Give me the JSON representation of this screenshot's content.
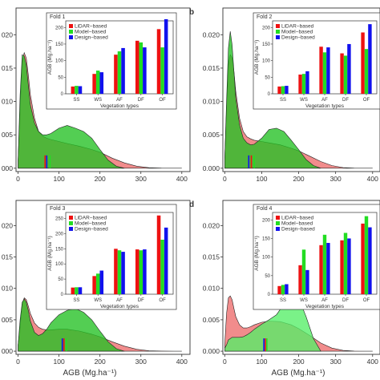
{
  "colors": {
    "lidar": "#ee1111",
    "model": "#22dd22",
    "design": "#1111ee",
    "lidar_density": "#f08080",
    "model_density": "#22c022",
    "model_density_light": "#55ee66"
  },
  "x_axis_label": "AGB (Mg.ha⁻¹)",
  "chart_data": [
    {
      "type": "area",
      "label": "",
      "x_ticks": [
        0,
        100,
        200,
        300,
        400
      ],
      "y_ticks": [
        0.0,
        0.005,
        0.01,
        0.015,
        0.02
      ],
      "y_tick_labels": [
        "000",
        "005",
        "010",
        "015",
        "020"
      ],
      "xlim": [
        -5,
        420
      ],
      "ylim": [
        -0.0005,
        0.024
      ],
      "series": [
        {
          "x": [
            0,
            5,
            10,
            15,
            20,
            25,
            30,
            40,
            50,
            60,
            70,
            80,
            100,
            120,
            150,
            180,
            200,
            230,
            260,
            290,
            320,
            350,
            380,
            400
          ],
          "y": [
            0.0012,
            0.009,
            0.016,
            0.0173,
            0.0165,
            0.014,
            0.011,
            0.0075,
            0.0055,
            0.0048,
            0.0045,
            0.0043,
            0.004,
            0.0037,
            0.0033,
            0.0028,
            0.0024,
            0.0015,
            0.0008,
            0.0003,
            8e-05,
            2e-05,
            0,
            0
          ]
        },
        {
          "x": [
            0,
            5,
            10,
            15,
            20,
            25,
            30,
            40,
            50,
            60,
            70,
            80,
            100,
            120,
            140,
            160,
            180,
            200,
            220,
            240,
            260
          ],
          "y": [
            0.0012,
            0.011,
            0.017,
            0.0168,
            0.0155,
            0.0125,
            0.0095,
            0.0068,
            0.0055,
            0.005,
            0.005,
            0.0052,
            0.006,
            0.0064,
            0.006,
            0.0055,
            0.0045,
            0.0028,
            0.0012,
            0.0003,
            0
          ]
        }
      ],
      "markers": [
        70,
        66,
        78
      ],
      "inset": {
        "title": "Fold 1",
        "ylabel": "AGB (Mg.ha⁻¹)",
        "xlabel": "Vegetation types",
        "categories": [
          "SS",
          "WS",
          "AF",
          "DF",
          "OF"
        ],
        "ylim": [
          0,
          220
        ],
        "y_ticks": [
          0,
          50,
          100,
          150,
          200
        ],
        "series": [
          {
            "name": "LiDAR−based",
            "values": [
              22,
              60,
              118,
              160,
              195
            ]
          },
          {
            "name": "Model−based",
            "values": [
              24,
              70,
              128,
              155,
              140
            ]
          },
          {
            "name": "Design−based",
            "values": [
              23,
              65,
              138,
              140,
              225
            ]
          }
        ]
      }
    },
    {
      "type": "area",
      "label": "b",
      "x_ticks": [
        0,
        100,
        200,
        300,
        400
      ],
      "y_ticks": [
        0.0,
        0.005,
        0.01,
        0.015,
        0.02
      ],
      "y_tick_labels": [
        "0.000",
        "0.005",
        "0.010",
        "0.015",
        "0.020"
      ],
      "xlim": [
        -5,
        420
      ],
      "ylim": [
        -0.0005,
        0.024
      ],
      "series": [
        {
          "x": [
            0,
            5,
            10,
            15,
            20,
            25,
            30,
            40,
            50,
            60,
            70,
            80,
            100,
            120,
            150,
            180,
            200,
            230,
            260,
            290,
            320,
            350,
            380,
            400
          ],
          "y": [
            0.0012,
            0.009,
            0.0155,
            0.017,
            0.0165,
            0.0145,
            0.0115,
            0.0075,
            0.0055,
            0.0047,
            0.0044,
            0.0042,
            0.004,
            0.0038,
            0.0035,
            0.003,
            0.0026,
            0.0018,
            0.001,
            0.0004,
            0.0001,
            2e-05,
            0,
            0
          ]
        },
        {
          "x": [
            0,
            5,
            10,
            15,
            20,
            25,
            30,
            40,
            50,
            60,
            70,
            80,
            100,
            120,
            140,
            160,
            180,
            200,
            220,
            240,
            260
          ],
          "y": [
            0.0012,
            0.01,
            0.018,
            0.0205,
            0.0185,
            0.0145,
            0.0105,
            0.0065,
            0.0045,
            0.0038,
            0.0035,
            0.0036,
            0.0045,
            0.0058,
            0.006,
            0.0055,
            0.0042,
            0.0028,
            0.0013,
            0.0004,
            0
          ]
        }
      ],
      "markers": [
        65,
        72,
        80
      ],
      "inset": {
        "title": "Fold 2",
        "ylabel": "AGB (Mg.ha⁻¹)",
        "xlabel": "Vegetation types",
        "categories": [
          "SS",
          "WS",
          "AF",
          "DF",
          "OF"
        ],
        "ylim": [
          0,
          220
        ],
        "y_ticks": [
          0,
          50,
          100,
          150,
          200
        ],
        "series": [
          {
            "name": "LiDAR−based",
            "values": [
              22,
              58,
              142,
              122,
              185
            ]
          },
          {
            "name": "Model−based",
            "values": [
              23,
              60,
              125,
              115,
              135
            ]
          },
          {
            "name": "Design−based",
            "values": [
              24,
              68,
              140,
              150,
              210
            ]
          }
        ]
      }
    },
    {
      "type": "area",
      "label": "",
      "x_ticks": [
        0,
        100,
        200,
        300,
        400
      ],
      "y_ticks": [
        0.0,
        0.005,
        0.01,
        0.015,
        0.02
      ],
      "y_tick_labels": [
        "000",
        "005",
        "010",
        "015",
        "020"
      ],
      "xlim": [
        -5,
        420
      ],
      "ylim": [
        -0.0005,
        0.024
      ],
      "series": [
        {
          "x": [
            0,
            5,
            10,
            15,
            20,
            25,
            30,
            40,
            50,
            60,
            70,
            80,
            100,
            120,
            150,
            180,
            200,
            230,
            260,
            290,
            320,
            350,
            380,
            400
          ],
          "y": [
            0.001,
            0.004,
            0.0075,
            0.0085,
            0.0082,
            0.0072,
            0.006,
            0.0045,
            0.0038,
            0.0035,
            0.0034,
            0.0034,
            0.0035,
            0.0035,
            0.0032,
            0.0027,
            0.0023,
            0.0015,
            0.0008,
            0.0003,
            8e-05,
            2e-05,
            0,
            0
          ]
        },
        {
          "x": [
            0,
            5,
            10,
            15,
            20,
            25,
            30,
            40,
            50,
            60,
            70,
            80,
            100,
            120,
            140,
            160,
            180,
            200,
            220,
            240,
            260
          ],
          "y": [
            0.001,
            0.005,
            0.0078,
            0.0083,
            0.0078,
            0.0065,
            0.0048,
            0.003,
            0.0025,
            0.0028,
            0.0035,
            0.0045,
            0.0058,
            0.0065,
            0.0068,
            0.0062,
            0.005,
            0.0032,
            0.0015,
            0.0004,
            0
          ]
        }
      ],
      "markers": [
        108,
        112,
        118
      ],
      "inset": {
        "title": "Fold 3",
        "ylabel": "AGB (Mg.ha⁻¹)",
        "xlabel": "Vegetation types",
        "categories": [
          "SS",
          "WS",
          "AF",
          "DF",
          "OF"
        ],
        "ylim": [
          0,
          270
        ],
        "y_ticks": [
          0,
          50,
          100,
          150,
          200,
          250
        ],
        "series": [
          {
            "name": "LiDAR−based",
            "values": [
              22,
              60,
              150,
              148,
              260
            ]
          },
          {
            "name": "Model−based",
            "values": [
              23,
              68,
              145,
              145,
              180
            ]
          },
          {
            "name": "Design−based",
            "values": [
              23,
              78,
              140,
              148,
              220
            ]
          }
        ]
      }
    },
    {
      "type": "area",
      "label": "d",
      "x_ticks": [
        0,
        100,
        200,
        300,
        400
      ],
      "y_ticks": [
        0.0,
        0.005,
        0.01,
        0.015,
        0.02
      ],
      "y_tick_labels": [
        "0.000",
        "0.005",
        "0.010",
        "0.015",
        "0.020"
      ],
      "xlim": [
        -5,
        420
      ],
      "ylim": [
        -0.0005,
        0.024
      ],
      "series": [
        {
          "x": [
            0,
            5,
            10,
            15,
            20,
            25,
            30,
            40,
            50,
            60,
            70,
            80,
            100,
            120,
            150,
            180,
            200,
            230,
            260,
            290,
            320,
            350,
            380,
            400
          ],
          "y": [
            0.001,
            0.006,
            0.0085,
            0.0088,
            0.0082,
            0.0068,
            0.0055,
            0.0042,
            0.0037,
            0.0037,
            0.0039,
            0.0042,
            0.0046,
            0.0048,
            0.0047,
            0.0042,
            0.0036,
            0.0025,
            0.0013,
            0.0005,
            0.00012,
            2e-05,
            0,
            0
          ]
        },
        {
          "x": [
            0,
            5,
            10,
            15,
            20,
            25,
            30,
            40,
            50,
            60,
            70,
            80,
            100,
            120,
            140,
            160,
            180,
            200,
            220,
            240,
            260
          ],
          "y": [
            0.0005,
            0.001,
            0.0018,
            0.002,
            0.0022,
            0.0022,
            0.0022,
            0.0022,
            0.0023,
            0.0026,
            0.003,
            0.0035,
            0.0043,
            0.005,
            0.0058,
            0.0075,
            0.009,
            0.0085,
            0.0055,
            0.002,
            0
          ]
        }
      ],
      "markers": [
        106,
        110,
        114
      ],
      "inset": {
        "title": "Fold 4",
        "ylabel": "AGB (Mg.ha⁻¹)",
        "xlabel": "Vegetation types",
        "categories": [
          "SS",
          "WS",
          "AF",
          "DF",
          "OF"
        ],
        "ylim": [
          0,
          220
        ],
        "y_ticks": [
          0,
          50,
          100,
          150,
          200
        ],
        "series": [
          {
            "name": "LiDAR−based",
            "values": [
              22,
              78,
              132,
              145,
              190
            ]
          },
          {
            "name": "Model−based",
            "values": [
              25,
              120,
              160,
              165,
              210
            ]
          },
          {
            "name": "Design−based",
            "values": [
              27,
              65,
              138,
              150,
              180
            ]
          }
        ]
      }
    }
  ]
}
